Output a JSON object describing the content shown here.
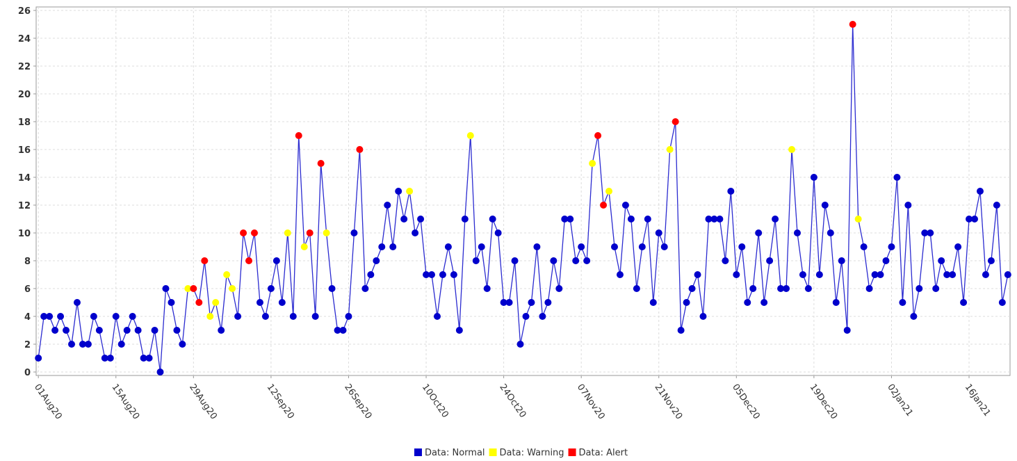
{
  "chart_data": {
    "type": "line",
    "line_color": "#2b2bd0",
    "grid": true,
    "legend": "bottom",
    "x": [
      "2020-08-01",
      "2020-08-02",
      "2020-08-03",
      "2020-08-04",
      "2020-08-05",
      "2020-08-06",
      "2020-08-07",
      "2020-08-08",
      "2020-08-09",
      "2020-08-10",
      "2020-08-11",
      "2020-08-12",
      "2020-08-13",
      "2020-08-14",
      "2020-08-15",
      "2020-08-16",
      "2020-08-17",
      "2020-08-18",
      "2020-08-19",
      "2020-08-20",
      "2020-08-21",
      "2020-08-22",
      "2020-08-23",
      "2020-08-24",
      "2020-08-25",
      "2020-08-26",
      "2020-08-27",
      "2020-08-28",
      "2020-08-29",
      "2020-08-30",
      "2020-08-31",
      "2020-09-01",
      "2020-09-02",
      "2020-09-03",
      "2020-09-04",
      "2020-09-05",
      "2020-09-06",
      "2020-09-07",
      "2020-09-08",
      "2020-09-09",
      "2020-09-10",
      "2020-09-11",
      "2020-09-12",
      "2020-09-13",
      "2020-09-14",
      "2020-09-15",
      "2020-09-16",
      "2020-09-17",
      "2020-09-18",
      "2020-09-19",
      "2020-09-20",
      "2020-09-21",
      "2020-09-22",
      "2020-09-23",
      "2020-09-24",
      "2020-09-25",
      "2020-09-26",
      "2020-09-27",
      "2020-09-28",
      "2020-09-29",
      "2020-09-30",
      "2020-10-01",
      "2020-10-02",
      "2020-10-03",
      "2020-10-04",
      "2020-10-05",
      "2020-10-06",
      "2020-10-07",
      "2020-10-08",
      "2020-10-09",
      "2020-10-10",
      "2020-10-11",
      "2020-10-12",
      "2020-10-13",
      "2020-10-14",
      "2020-10-15",
      "2020-10-16",
      "2020-10-17",
      "2020-10-18",
      "2020-10-19",
      "2020-10-20",
      "2020-10-21",
      "2020-10-22",
      "2020-10-23",
      "2020-10-24",
      "2020-10-25",
      "2020-10-26",
      "2020-10-27",
      "2020-10-28",
      "2020-10-29",
      "2020-10-30",
      "2020-10-31",
      "2020-11-01",
      "2020-11-02",
      "2020-11-03",
      "2020-11-04",
      "2020-11-05",
      "2020-11-06",
      "2020-11-07",
      "2020-11-08",
      "2020-11-09",
      "2020-11-10",
      "2020-11-11",
      "2020-11-12",
      "2020-11-13",
      "2020-11-14",
      "2020-11-15",
      "2020-11-16",
      "2020-11-17",
      "2020-11-18",
      "2020-11-19",
      "2020-11-20",
      "2020-11-21",
      "2020-11-22",
      "2020-11-23",
      "2020-11-24",
      "2020-11-25",
      "2020-11-26",
      "2020-11-27",
      "2020-11-28",
      "2020-11-29",
      "2020-11-30",
      "2020-12-01",
      "2020-12-02",
      "2020-12-03",
      "2020-12-04",
      "2020-12-05",
      "2020-12-06",
      "2020-12-07",
      "2020-12-08",
      "2020-12-09",
      "2020-12-10",
      "2020-12-11",
      "2020-12-12",
      "2020-12-13",
      "2020-12-14",
      "2020-12-15",
      "2020-12-16",
      "2020-12-17",
      "2020-12-18",
      "2020-12-19",
      "2020-12-20",
      "2020-12-21",
      "2020-12-22",
      "2020-12-23",
      "2020-12-24",
      "2020-12-25",
      "2020-12-26",
      "2020-12-27",
      "2020-12-28",
      "2020-12-29",
      "2020-12-30",
      "2020-12-31",
      "2021-01-01",
      "2021-01-02",
      "2021-01-03",
      "2021-01-04",
      "2021-01-05",
      "2021-01-06",
      "2021-01-07",
      "2021-01-08",
      "2021-01-09",
      "2021-01-10",
      "2021-01-11",
      "2021-01-12",
      "2021-01-13",
      "2021-01-14",
      "2021-01-15",
      "2021-01-16",
      "2021-01-17",
      "2021-01-18",
      "2021-01-19",
      "2021-01-20",
      "2021-01-21",
      "2021-01-22",
      "2021-01-23"
    ],
    "xlim": [
      "2020-08-01",
      "2021-01-23"
    ],
    "xticks": [
      {
        "value": "2020-08-01",
        "label": "01Aug20"
      },
      {
        "value": "2020-08-15",
        "label": "15Aug20"
      },
      {
        "value": "2020-08-29",
        "label": "29Aug20"
      },
      {
        "value": "2020-09-12",
        "label": "12Sep20"
      },
      {
        "value": "2020-09-26",
        "label": "26Sep20"
      },
      {
        "value": "2020-10-10",
        "label": "10Oct20"
      },
      {
        "value": "2020-10-24",
        "label": "24Oct20"
      },
      {
        "value": "2020-11-07",
        "label": "07Nov20"
      },
      {
        "value": "2020-11-21",
        "label": "21Nov20"
      },
      {
        "value": "2020-12-05",
        "label": "05Dec20"
      },
      {
        "value": "2020-12-19",
        "label": "19Dec20"
      },
      {
        "value": "2021-01-02",
        "label": "02Jan21"
      },
      {
        "value": "2021-01-16",
        "label": "16Jan21"
      }
    ],
    "ylim": [
      -0.25,
      26.25
    ],
    "yticks": [
      0,
      2,
      4,
      6,
      8,
      10,
      12,
      14,
      16,
      18,
      20,
      22,
      24,
      26
    ],
    "series": [
      {
        "name": "Data: Normal",
        "color": "#0000cc",
        "values": [
          1,
          4,
          4,
          3,
          4,
          3,
          2,
          5,
          2,
          2,
          4,
          3,
          1,
          1,
          4,
          2,
          3,
          4,
          3,
          1,
          1,
          3,
          0,
          6,
          5,
          3,
          2,
          null,
          null,
          null,
          null,
          null,
          null,
          3,
          null,
          null,
          4,
          null,
          null,
          null,
          5,
          4,
          6,
          8,
          5,
          null,
          4,
          null,
          null,
          null,
          4,
          null,
          null,
          6,
          3,
          3,
          4,
          10,
          null,
          6,
          7,
          8,
          9,
          12,
          9,
          13,
          11,
          null,
          10,
          11,
          7,
          7,
          4,
          7,
          9,
          7,
          3,
          11,
          null,
          8,
          9,
          6,
          11,
          10,
          5,
          5,
          8,
          2,
          4,
          5,
          9,
          4,
          5,
          8,
          6,
          11,
          11,
          8,
          9,
          8,
          null,
          null,
          null,
          null,
          9,
          7,
          12,
          11,
          6,
          9,
          11,
          5,
          10,
          9,
          null,
          null,
          3,
          5,
          6,
          7,
          4,
          11,
          11,
          11,
          8,
          13,
          7,
          9,
          5,
          6,
          10,
          5,
          8,
          11,
          6,
          6,
          null,
          10,
          7,
          6,
          14,
          7,
          12,
          10,
          5,
          8,
          3,
          null,
          null,
          9,
          6,
          7,
          7,
          8,
          9,
          14,
          5,
          12,
          4,
          6,
          10,
          10,
          6,
          8,
          7,
          7,
          9,
          5,
          11,
          11,
          13,
          7,
          8,
          12,
          5,
          7
        ]
      },
      {
        "name": "Data: Warning",
        "color": "#ffff00",
        "values": [
          null,
          null,
          null,
          null,
          null,
          null,
          null,
          null,
          null,
          null,
          null,
          null,
          null,
          null,
          null,
          null,
          null,
          null,
          null,
          null,
          null,
          null,
          null,
          null,
          null,
          null,
          null,
          6,
          null,
          null,
          null,
          4,
          5,
          null,
          7,
          6,
          null,
          null,
          null,
          null,
          null,
          null,
          null,
          null,
          null,
          10,
          null,
          null,
          9,
          null,
          null,
          null,
          10,
          null,
          null,
          null,
          null,
          null,
          null,
          null,
          null,
          null,
          null,
          null,
          null,
          null,
          null,
          13,
          null,
          null,
          null,
          null,
          null,
          null,
          null,
          null,
          null,
          null,
          17,
          null,
          null,
          null,
          null,
          null,
          null,
          null,
          null,
          null,
          null,
          null,
          null,
          null,
          null,
          null,
          null,
          null,
          null,
          null,
          null,
          null,
          15,
          null,
          null,
          13,
          null,
          null,
          null,
          null,
          null,
          null,
          null,
          null,
          null,
          null,
          16,
          null,
          null,
          null,
          null,
          null,
          null,
          null,
          null,
          null,
          null,
          null,
          null,
          null,
          null,
          null,
          null,
          null,
          null,
          null,
          null,
          null,
          16,
          null,
          null,
          null,
          null,
          null,
          null,
          null,
          null,
          null,
          null,
          null,
          11,
          null,
          null,
          null,
          null,
          null,
          null,
          null,
          null,
          null,
          null,
          null,
          null,
          null,
          null,
          null,
          null,
          null,
          null,
          null,
          null,
          null,
          null,
          null,
          null,
          null,
          null,
          null
        ]
      },
      {
        "name": "Data: Alert",
        "color": "#ff0000",
        "values": [
          null,
          null,
          null,
          null,
          null,
          null,
          null,
          null,
          null,
          null,
          null,
          null,
          null,
          null,
          null,
          null,
          null,
          null,
          null,
          null,
          null,
          null,
          null,
          null,
          null,
          null,
          null,
          null,
          6,
          5,
          8,
          null,
          null,
          null,
          null,
          null,
          null,
          10,
          8,
          10,
          null,
          null,
          null,
          null,
          null,
          null,
          null,
          17,
          null,
          10,
          null,
          15,
          null,
          null,
          null,
          null,
          null,
          null,
          16,
          null,
          null,
          null,
          null,
          null,
          null,
          null,
          null,
          null,
          null,
          null,
          null,
          null,
          null,
          null,
          null,
          null,
          null,
          null,
          null,
          null,
          null,
          null,
          null,
          null,
          null,
          null,
          null,
          null,
          null,
          null,
          null,
          null,
          null,
          null,
          null,
          null,
          null,
          null,
          null,
          null,
          null,
          17,
          12,
          null,
          null,
          null,
          null,
          null,
          null,
          null,
          null,
          null,
          null,
          null,
          null,
          18,
          null,
          null,
          null,
          null,
          null,
          null,
          null,
          null,
          null,
          null,
          null,
          null,
          null,
          null,
          null,
          null,
          null,
          null,
          null,
          null,
          null,
          null,
          null,
          null,
          null,
          null,
          null,
          null,
          null,
          null,
          null,
          25,
          null,
          null,
          null,
          null,
          null,
          null,
          null,
          null,
          null,
          null,
          null,
          null,
          null,
          null,
          null,
          null,
          null,
          null,
          null,
          null,
          null,
          null,
          null,
          null,
          null,
          null,
          null,
          null
        ]
      }
    ]
  }
}
